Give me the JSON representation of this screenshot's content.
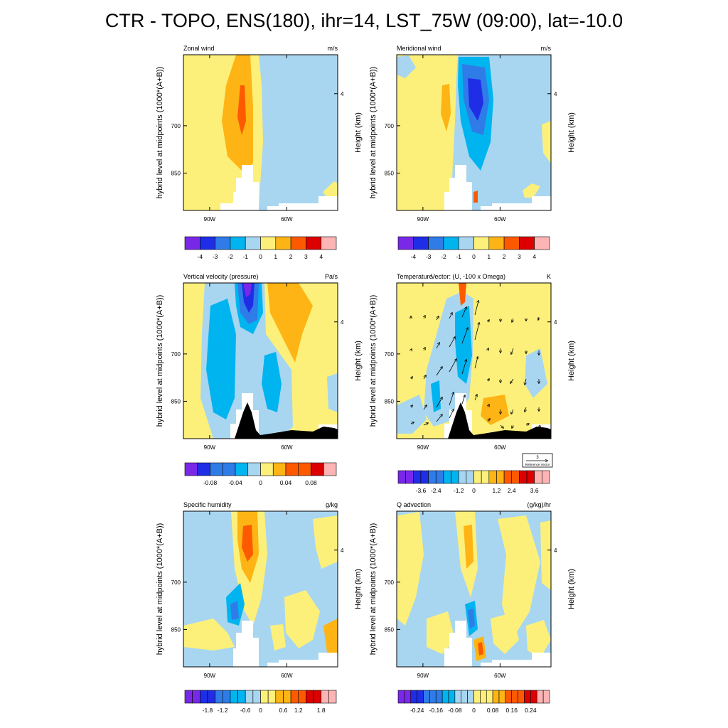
{
  "page": {
    "title": "CTR - TOPO, ENS(180), ihr=14, LST_75W (09:00), lat=-10.0"
  },
  "common": {
    "left_axis_label": "hybrid level at midpoints (1000*(A+B))",
    "right_axis_label": "Height (km)",
    "x_tick_labels": [
      "90W",
      "60W"
    ],
    "y_tick_labels": [
      "700",
      "850"
    ],
    "right_tick_label": "4"
  },
  "reference_vector": {
    "value": "3",
    "label": "Reference Vector"
  },
  "palette": [
    "#7a28e8",
    "#1f2ee6",
    "#2f7ce8",
    "#00b4f0",
    "#a8d6f0",
    "#fdf07a",
    "#fdb414",
    "#fd5a00",
    "#dc0000",
    "#fdb4b4"
  ],
  "chart_data": [
    {
      "type": "heatmap",
      "title": "Zonal wind",
      "units": "m/s",
      "colorbar_labels": [
        "-4",
        "-3",
        "-2",
        "-1",
        "0",
        "1",
        "2",
        "3",
        "4"
      ],
      "x_ticks": [
        "90W",
        "60W"
      ],
      "y_ticks": [
        "700",
        "850"
      ],
      "has_vectors": false,
      "has_terrain": false
    },
    {
      "type": "heatmap",
      "title": "Meridional wind",
      "units": "m/s",
      "colorbar_labels": [
        "-4",
        "-3",
        "-2",
        "-1",
        "0",
        "1",
        "2",
        "3",
        "4"
      ],
      "x_ticks": [
        "90W",
        "60W"
      ],
      "y_ticks": [
        "700",
        "850"
      ],
      "has_vectors": false,
      "has_terrain": false
    },
    {
      "type": "heatmap",
      "title": "Vertical velocity (pressure)",
      "units": "Pa/s",
      "colorbar_labels": [
        "-0.08",
        "-0.04",
        "0",
        "0.04",
        "0.08"
      ],
      "x_ticks": [
        "90W",
        "60W"
      ],
      "y_ticks": [
        "700",
        "850"
      ],
      "has_vectors": false,
      "has_terrain": true
    },
    {
      "type": "heatmap",
      "title": "Temperature",
      "title2": "Vector: (U, -100 x Omega)",
      "units": "K",
      "colorbar_labels": [
        "-3.6",
        "-2.4",
        "-1.2",
        "0",
        "1.2",
        "2.4",
        "3.6"
      ],
      "x_ticks": [
        "90W",
        "60W"
      ],
      "y_ticks": [
        "700",
        "850"
      ],
      "has_vectors": true,
      "has_terrain": true
    },
    {
      "type": "heatmap",
      "title": "Specific humidity",
      "units": "g/kg",
      "colorbar_labels": [
        "-1.8",
        "-1.2",
        "-0.6",
        "0",
        "0.6",
        "1.2",
        "1.8"
      ],
      "x_ticks": [
        "90W",
        "60W"
      ],
      "y_ticks": [
        "700",
        "850"
      ],
      "has_vectors": false,
      "has_terrain": false
    },
    {
      "type": "heatmap",
      "title": "Q advection",
      "units": "(g/kg)/hr",
      "colorbar_labels": [
        "-0.24",
        "-0.16",
        "-0.08",
        "0",
        "0.08",
        "0.16",
        "0.24"
      ],
      "x_ticks": [
        "90W",
        "60W"
      ],
      "y_ticks": [
        "700",
        "850"
      ],
      "has_vectors": false,
      "has_terrain": false
    }
  ]
}
